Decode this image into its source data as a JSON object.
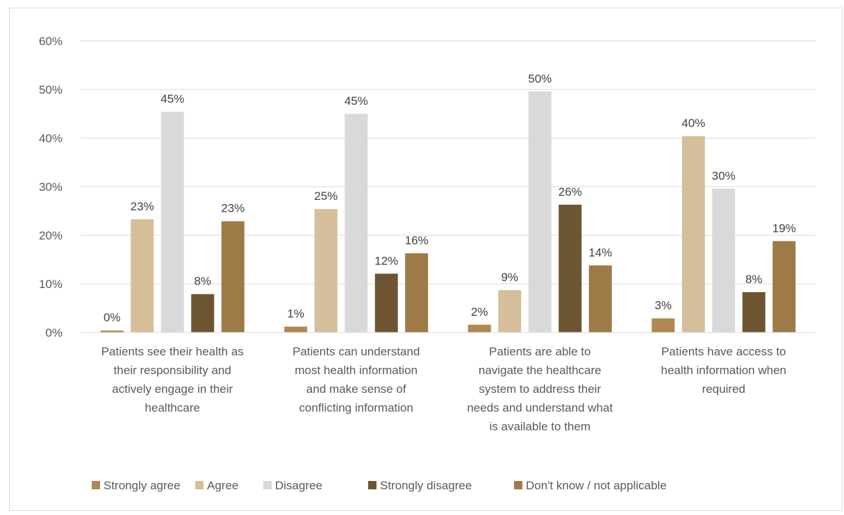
{
  "chart_data": {
    "type": "bar",
    "title": "",
    "xlabel": "",
    "ylabel": "",
    "ylim": [
      0,
      60
    ],
    "y_ticks": [
      0,
      10,
      20,
      30,
      40,
      50,
      60
    ],
    "y_tick_labels": [
      "0%",
      "10%",
      "20%",
      "30%",
      "40%",
      "50%",
      "60%"
    ],
    "grid": true,
    "legend_position": "bottom",
    "categories": [
      "Patients see their health as their responsibility and actively engage in their healthcare",
      "Patients can understand most health information and make sense of conflicting information",
      "Patients are able to navigate the healthcare system to address their needs and understand what is available to them",
      "Patients have access to health information when required"
    ],
    "category_label_lines": [
      [
        "Patients see their health as",
        "their responsibility and",
        "actively engage in their",
        "healthcare"
      ],
      [
        "Patients can understand",
        "most health information",
        "and make sense of",
        "conflicting information"
      ],
      [
        "Patients are able to",
        "navigate the healthcare",
        "system to address their",
        "needs and understand what",
        "is available to them"
      ],
      [
        "Patients have access to",
        "health information when",
        "required"
      ]
    ],
    "series": [
      {
        "name": "Strongly agree",
        "color": "#b08850",
        "values": [
          0.4,
          1.2,
          1.6,
          2.9
        ],
        "labels": [
          "0%",
          "1%",
          "2%",
          "3%"
        ]
      },
      {
        "name": "Agree",
        "color": "#d5bf9b",
        "values": [
          23.3,
          25.4,
          8.7,
          40.4
        ],
        "labels": [
          "23%",
          "25%",
          "9%",
          "40%"
        ]
      },
      {
        "name": "Disagree",
        "color": "#d9d9d9",
        "values": [
          45.4,
          45.0,
          49.6,
          29.6
        ],
        "labels": [
          "45%",
          "45%",
          "50%",
          "30%"
        ]
      },
      {
        "name": "Strongly disagree",
        "color": "#6e5532",
        "values": [
          7.9,
          12.1,
          26.3,
          8.3
        ],
        "labels": [
          "8%",
          "12%",
          "26%",
          "8%"
        ]
      },
      {
        "name": "Don't know / not applicable",
        "color": "#9e7a47",
        "values": [
          22.9,
          16.3,
          13.8,
          18.8
        ],
        "labels": [
          "23%",
          "16%",
          "14%",
          "19%"
        ]
      }
    ]
  }
}
